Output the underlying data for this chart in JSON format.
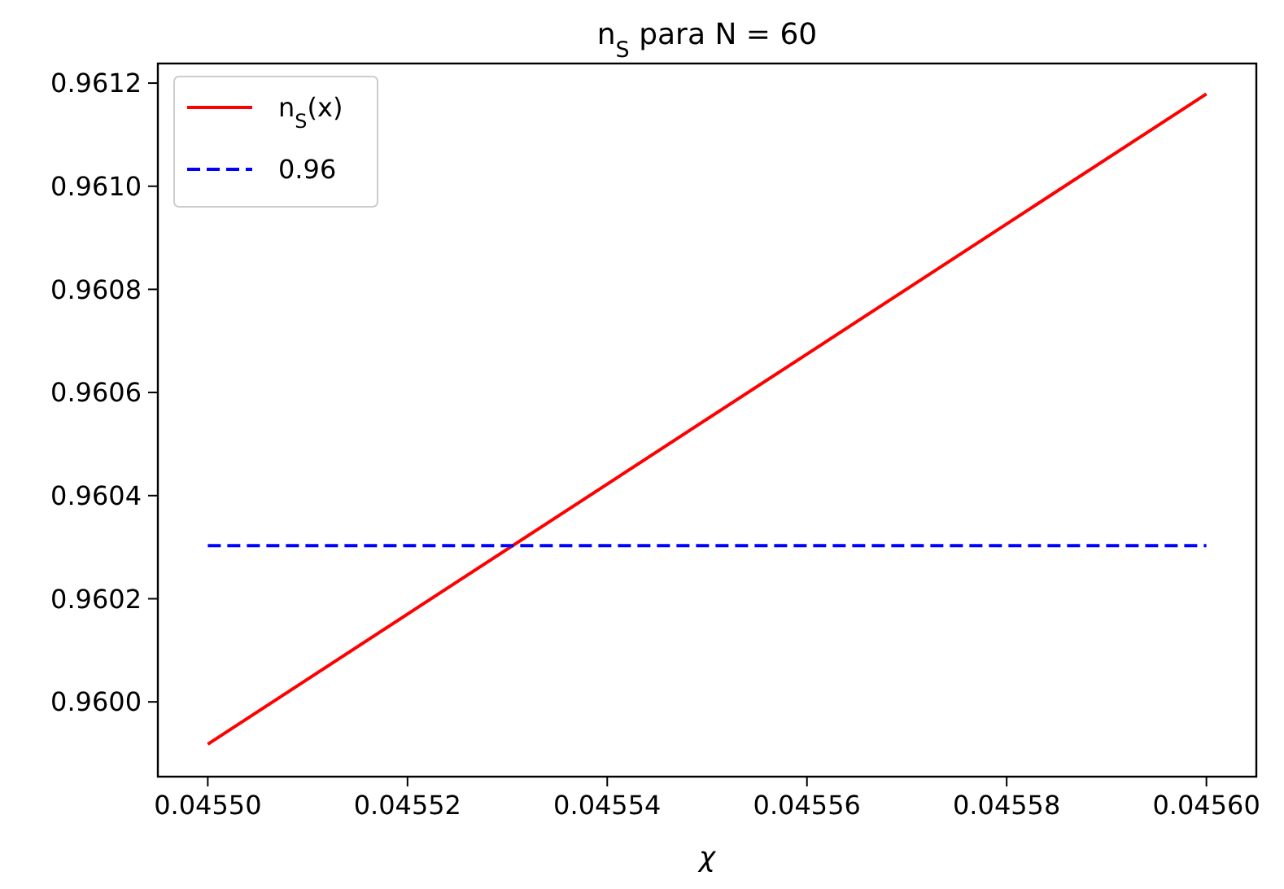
{
  "chart_data": {
    "type": "line",
    "title": "n$_{S}$ para N = 60",
    "xlabel": "χ",
    "x": [
      0.0455,
      0.0456
    ],
    "xlim": [
      0.045495,
      0.045605
    ],
    "xticks": [
      {
        "value": 0.0455,
        "label": "0.04550"
      },
      {
        "value": 0.04552,
        "label": "0.04552"
      },
      {
        "value": 0.04554,
        "label": "0.04554"
      },
      {
        "value": 0.04556,
        "label": "0.04556"
      },
      {
        "value": 0.04558,
        "label": "0.04558"
      },
      {
        "value": 0.0456,
        "label": "0.04560"
      }
    ],
    "ylim": [
      0.959855,
      0.961238
    ],
    "yticks": [
      {
        "value": 0.96,
        "label": "0.9600"
      },
      0.9602,
      0.9604,
      0.9606,
      0.9608,
      {
        "value": 0.961,
        "label": "0.9610"
      },
      0.9612
    ],
    "series": [
      {
        "name": "n$_{S}$(x)",
        "color": "#ff0000",
        "values": [
          0.959918,
          0.961179
        ],
        "line_style": "solid"
      },
      {
        "name": "0.96",
        "color": "#0000ff",
        "values": [
          0.960303,
          0.960303
        ],
        "line_style": "dashed"
      }
    ],
    "legend": "top left",
    "grid": false
  }
}
